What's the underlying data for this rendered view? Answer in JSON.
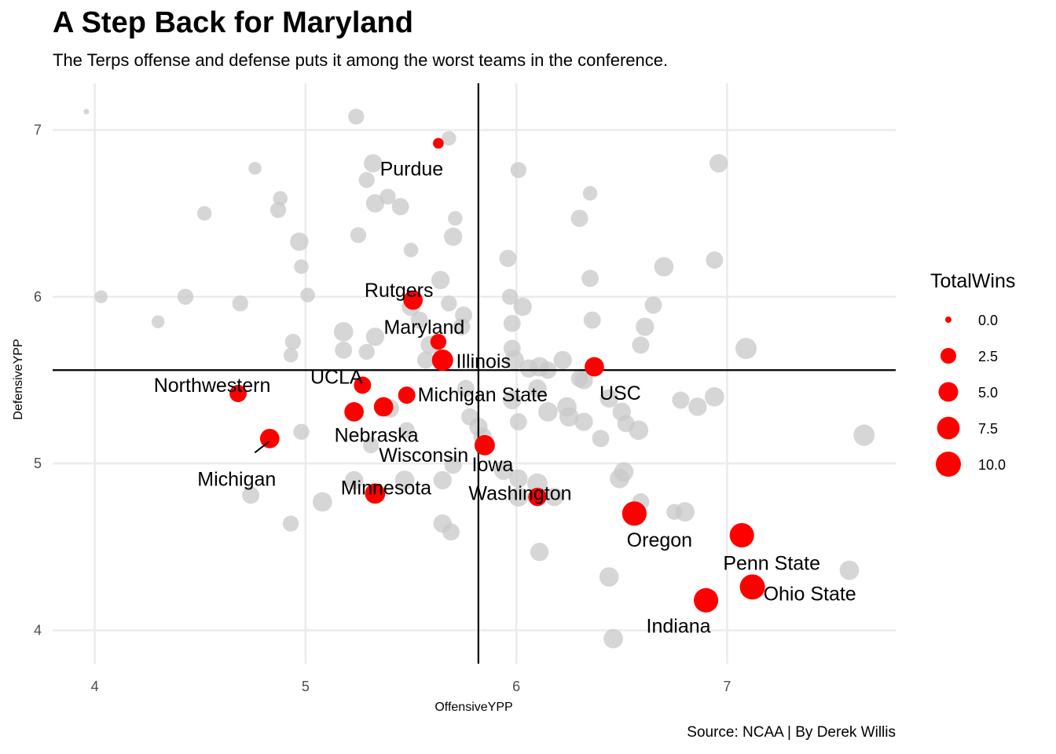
{
  "title": "A Step Back for Maryland",
  "subtitle": "The Terps offense and defense puts it among the worst teams in the conference.",
  "caption": "Source: NCAA | By Derek Willis",
  "colors": {
    "highlight": "#ff0000",
    "background_points": "#c8c8c8",
    "gridline": "#ebebeb",
    "reference_lines": "#000000"
  },
  "chart_data": {
    "type": "scatter",
    "title": "A Step Back for Maryland",
    "subtitle": "The Terps offense and defense puts it among the worst teams in the conference.",
    "xlabel": "OffensiveYPP",
    "ylabel": "DefensiveYPP",
    "xlim": [
      3.8,
      7.8
    ],
    "ylim": [
      3.8,
      7.28
    ],
    "x_ticks": [
      4,
      5,
      6,
      7
    ],
    "y_ticks": [
      4,
      5,
      6,
      7
    ],
    "grid": true,
    "reference_lines": {
      "vline_x": 5.82,
      "hline_y": 5.56
    },
    "size_legend": {
      "title": "TotalWins",
      "placement": "right",
      "values": [
        0.0,
        2.5,
        5.0,
        7.5,
        10.0
      ],
      "labels": [
        "0.0",
        "2.5",
        "5.0",
        "7.5",
        "10.0"
      ]
    },
    "highlighted_teams": [
      {
        "name": "Purdue",
        "x": 5.63,
        "y": 6.92,
        "wins": 1
      },
      {
        "name": "Rutgers",
        "x": 5.51,
        "y": 5.98,
        "wins": 7
      },
      {
        "name": "Maryland",
        "x": 5.63,
        "y": 5.73,
        "wins": 4
      },
      {
        "name": "Illinois",
        "x": 5.65,
        "y": 5.62,
        "wins": 9
      },
      {
        "name": "USC",
        "x": 6.37,
        "y": 5.58,
        "wins": 7
      },
      {
        "name": "UCLA",
        "x": 5.27,
        "y": 5.47,
        "wins": 5
      },
      {
        "name": "Northwestern",
        "x": 4.68,
        "y": 5.42,
        "wins": 5
      },
      {
        "name": "Michigan State",
        "x": 5.48,
        "y": 5.41,
        "wins": 5
      },
      {
        "name": "Wisconsin",
        "x": 5.37,
        "y": 5.34,
        "wins": 7
      },
      {
        "name": "Nebraska",
        "x": 5.23,
        "y": 5.31,
        "wins": 7
      },
      {
        "name": "Michigan",
        "x": 4.83,
        "y": 5.15,
        "wins": 7
      },
      {
        "name": "Iowa",
        "x": 5.85,
        "y": 5.11,
        "wins": 8
      },
      {
        "name": "Minnesota",
        "x": 5.33,
        "y": 4.82,
        "wins": 8
      },
      {
        "name": "Washington",
        "x": 6.1,
        "y": 4.8,
        "wins": 6
      },
      {
        "name": "Oregon",
        "x": 6.56,
        "y": 4.7,
        "wins": 13
      },
      {
        "name": "Penn State",
        "x": 7.07,
        "y": 4.57,
        "wins": 13
      },
      {
        "name": "Ohio State",
        "x": 7.12,
        "y": 4.26,
        "wins": 14
      },
      {
        "name": "Indiana",
        "x": 6.9,
        "y": 4.18,
        "wins": 13
      }
    ],
    "other_teams": [
      {
        "x": 3.96,
        "y": 7.11,
        "wins": 0
      },
      {
        "x": 5.24,
        "y": 7.08,
        "wins": 4
      },
      {
        "x": 5.68,
        "y": 6.95,
        "wins": 3
      },
      {
        "x": 4.76,
        "y": 6.77,
        "wins": 2
      },
      {
        "x": 5.32,
        "y": 6.8,
        "wins": 6
      },
      {
        "x": 6.01,
        "y": 6.76,
        "wins": 4
      },
      {
        "x": 6.96,
        "y": 6.8,
        "wins": 6
      },
      {
        "x": 5.29,
        "y": 6.7,
        "wins": 4
      },
      {
        "x": 5.39,
        "y": 6.6,
        "wins": 4
      },
      {
        "x": 4.88,
        "y": 6.59,
        "wins": 3
      },
      {
        "x": 5.33,
        "y": 6.56,
        "wins": 6
      },
      {
        "x": 5.45,
        "y": 6.54,
        "wins": 5
      },
      {
        "x": 6.35,
        "y": 6.62,
        "wins": 3
      },
      {
        "x": 4.87,
        "y": 6.52,
        "wins": 4
      },
      {
        "x": 4.52,
        "y": 6.5,
        "wins": 3
      },
      {
        "x": 5.71,
        "y": 6.47,
        "wins": 3
      },
      {
        "x": 6.3,
        "y": 6.47,
        "wins": 5
      },
      {
        "x": 5.25,
        "y": 6.37,
        "wins": 4
      },
      {
        "x": 5.7,
        "y": 6.36,
        "wins": 6
      },
      {
        "x": 4.97,
        "y": 6.33,
        "wins": 6
      },
      {
        "x": 5.5,
        "y": 6.28,
        "wins": 3
      },
      {
        "x": 5.96,
        "y": 6.23,
        "wins": 5
      },
      {
        "x": 6.94,
        "y": 6.22,
        "wins": 5
      },
      {
        "x": 4.98,
        "y": 6.18,
        "wins": 3
      },
      {
        "x": 6.7,
        "y": 6.18,
        "wins": 7
      },
      {
        "x": 6.35,
        "y": 6.11,
        "wins": 5
      },
      {
        "x": 5.64,
        "y": 6.1,
        "wins": 6
      },
      {
        "x": 4.03,
        "y": 6.0,
        "wins": 2
      },
      {
        "x": 4.43,
        "y": 6.0,
        "wins": 4
      },
      {
        "x": 5.01,
        "y": 6.01,
        "wins": 3
      },
      {
        "x": 5.97,
        "y": 6.0,
        "wins": 4
      },
      {
        "x": 4.69,
        "y": 5.96,
        "wins": 4
      },
      {
        "x": 5.68,
        "y": 5.96,
        "wins": 4
      },
      {
        "x": 6.03,
        "y": 5.94,
        "wins": 6
      },
      {
        "x": 6.65,
        "y": 5.95,
        "wins": 5
      },
      {
        "x": 5.5,
        "y": 5.94,
        "wins": 6
      },
      {
        "x": 5.75,
        "y": 5.89,
        "wins": 5
      },
      {
        "x": 4.3,
        "y": 5.85,
        "wins": 2
      },
      {
        "x": 5.54,
        "y": 5.86,
        "wins": 5
      },
      {
        "x": 5.98,
        "y": 5.84,
        "wins": 5
      },
      {
        "x": 6.36,
        "y": 5.86,
        "wins": 5
      },
      {
        "x": 6.61,
        "y": 5.82,
        "wins": 6
      },
      {
        "x": 5.18,
        "y": 5.79,
        "wins": 7
      },
      {
        "x": 5.74,
        "y": 5.82,
        "wins": 5
      },
      {
        "x": 5.33,
        "y": 5.76,
        "wins": 6
      },
      {
        "x": 4.94,
        "y": 5.73,
        "wins": 4
      },
      {
        "x": 5.59,
        "y": 5.71,
        "wins": 6
      },
      {
        "x": 6.59,
        "y": 5.71,
        "wins": 5
      },
      {
        "x": 7.09,
        "y": 5.69,
        "wins": 9
      },
      {
        "x": 5.98,
        "y": 5.69,
        "wins": 5
      },
      {
        "x": 5.18,
        "y": 5.68,
        "wins": 5
      },
      {
        "x": 5.29,
        "y": 5.67,
        "wins": 4
      },
      {
        "x": 4.93,
        "y": 5.65,
        "wins": 3
      },
      {
        "x": 5.99,
        "y": 5.62,
        "wins": 7
      },
      {
        "x": 6.22,
        "y": 5.62,
        "wins": 6
      },
      {
        "x": 5.57,
        "y": 5.62,
        "wins": 5
      },
      {
        "x": 6.11,
        "y": 5.58,
        "wins": 7
      },
      {
        "x": 6.06,
        "y": 5.57,
        "wins": 6
      },
      {
        "x": 6.15,
        "y": 5.56,
        "wins": 5
      },
      {
        "x": 6.3,
        "y": 5.51,
        "wins": 5
      },
      {
        "x": 6.32,
        "y": 5.5,
        "wins": 6
      },
      {
        "x": 5.76,
        "y": 5.45,
        "wins": 5
      },
      {
        "x": 6.1,
        "y": 5.45,
        "wins": 6
      },
      {
        "x": 6.94,
        "y": 5.4,
        "wins": 7
      },
      {
        "x": 6.44,
        "y": 5.39,
        "wins": 6
      },
      {
        "x": 5.98,
        "y": 5.38,
        "wins": 6
      },
      {
        "x": 6.78,
        "y": 5.38,
        "wins": 5
      },
      {
        "x": 6.86,
        "y": 5.34,
        "wins": 6
      },
      {
        "x": 5.4,
        "y": 5.33,
        "wins": 6
      },
      {
        "x": 6.24,
        "y": 5.34,
        "wins": 7
      },
      {
        "x": 6.5,
        "y": 5.31,
        "wins": 6
      },
      {
        "x": 6.15,
        "y": 5.31,
        "wins": 7
      },
      {
        "x": 6.25,
        "y": 5.28,
        "wins": 7
      },
      {
        "x": 5.78,
        "y": 5.28,
        "wins": 5
      },
      {
        "x": 6.01,
        "y": 5.25,
        "wins": 5
      },
      {
        "x": 6.32,
        "y": 5.25,
        "wins": 6
      },
      {
        "x": 6.52,
        "y": 5.24,
        "wins": 5
      },
      {
        "x": 6.58,
        "y": 5.2,
        "wins": 7
      },
      {
        "x": 5.48,
        "y": 5.2,
        "wins": 4
      },
      {
        "x": 5.82,
        "y": 5.22,
        "wins": 6
      },
      {
        "x": 4.98,
        "y": 5.19,
        "wins": 4
      },
      {
        "x": 7.65,
        "y": 5.17,
        "wins": 9
      },
      {
        "x": 6.4,
        "y": 5.15,
        "wins": 5
      },
      {
        "x": 5.84,
        "y": 5.16,
        "wins": 6
      },
      {
        "x": 5.31,
        "y": 5.11,
        "wins": 4
      },
      {
        "x": 5.7,
        "y": 4.99,
        "wins": 5
      },
      {
        "x": 5.94,
        "y": 4.96,
        "wins": 7
      },
      {
        "x": 6.51,
        "y": 4.95,
        "wins": 7
      },
      {
        "x": 6.01,
        "y": 4.91,
        "wins": 6
      },
      {
        "x": 5.23,
        "y": 4.9,
        "wins": 6
      },
      {
        "x": 5.47,
        "y": 4.9,
        "wins": 7
      },
      {
        "x": 5.65,
        "y": 4.9,
        "wins": 6
      },
      {
        "x": 6.49,
        "y": 4.91,
        "wins": 7
      },
      {
        "x": 6.1,
        "y": 4.88,
        "wins": 8
      },
      {
        "x": 4.74,
        "y": 4.81,
        "wins": 5
      },
      {
        "x": 6.01,
        "y": 4.8,
        "wins": 7
      },
      {
        "x": 6.18,
        "y": 4.8,
        "wins": 6
      },
      {
        "x": 5.08,
        "y": 4.77,
        "wins": 7
      },
      {
        "x": 6.59,
        "y": 4.77,
        "wins": 5
      },
      {
        "x": 6.75,
        "y": 4.71,
        "wins": 4
      },
      {
        "x": 6.8,
        "y": 4.71,
        "wins": 7
      },
      {
        "x": 4.93,
        "y": 4.64,
        "wins": 4
      },
      {
        "x": 5.65,
        "y": 4.64,
        "wins": 6
      },
      {
        "x": 5.69,
        "y": 4.59,
        "wins": 5
      },
      {
        "x": 6.11,
        "y": 4.47,
        "wins": 6
      },
      {
        "x": 7.58,
        "y": 4.36,
        "wins": 7
      },
      {
        "x": 6.44,
        "y": 4.32,
        "wins": 7
      },
      {
        "x": 6.46,
        "y": 3.95,
        "wins": 7
      }
    ]
  }
}
